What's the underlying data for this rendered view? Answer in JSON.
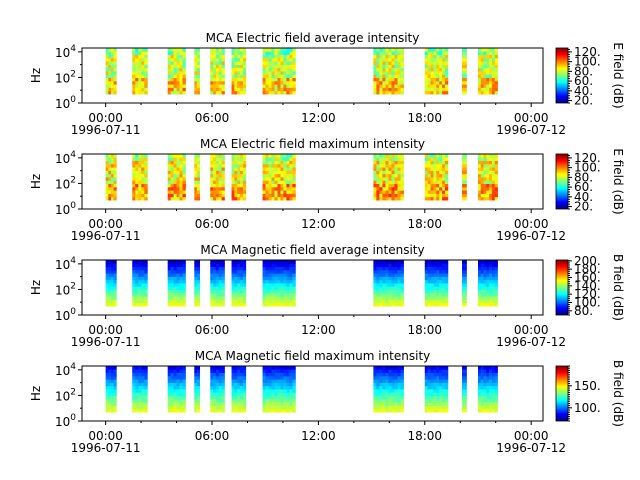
{
  "chart_data": [
    {
      "type": "heatmap",
      "title": "MCA  Electric field average intensity",
      "ylabel": "Hz",
      "ytick_labels": [
        "10^0",
        "10^2",
        "10^4"
      ],
      "yscale": "log",
      "ylim": [
        1,
        20000
      ],
      "xlim": [
        "1996-07-10 22:40",
        "1996-07-12 00:40"
      ],
      "xtick_labels": [
        "00:00",
        "06:00",
        "12:00",
        "18:00",
        "00:00"
      ],
      "xtick_values_hours": [
        0,
        6,
        12,
        18,
        24
      ],
      "xtick_date_labels": [
        "1996-07-11",
        "1996-07-12"
      ],
      "colorbar": {
        "label": "E field (dB)",
        "ticks": [
          20,
          40,
          60,
          80,
          100,
          120
        ],
        "tick_labels": [
          "20.",
          "40.",
          "60.",
          "80.",
          "100.",
          "120."
        ],
        "range": [
          15,
          128
        ],
        "colormap": "jet"
      },
      "freq_range_hz": [
        5,
        20000
      ],
      "data_segments_hours": [
        [
          0.0,
          0.6
        ],
        [
          1.5,
          2.35
        ],
        [
          3.5,
          4.5
        ],
        [
          5.0,
          5.3
        ],
        [
          5.9,
          6.7
        ],
        [
          7.1,
          7.9
        ],
        [
          8.85,
          10.7
        ],
        [
          15.1,
          16.8
        ],
        [
          18.0,
          19.3
        ],
        [
          20.1,
          20.35
        ],
        [
          21.0,
          22.1
        ]
      ],
      "typical_level_db": 80,
      "level_variation_db": 30
    },
    {
      "type": "heatmap",
      "title": "MCA  Electric field maximum intensity",
      "ylabel": "Hz",
      "ytick_labels": [
        "10^0",
        "10^2",
        "10^4"
      ],
      "yscale": "log",
      "ylim": [
        1,
        20000
      ],
      "xlim": [
        "1996-07-10 22:40",
        "1996-07-12 00:40"
      ],
      "xtick_labels": [
        "00:00",
        "06:00",
        "12:00",
        "18:00",
        "00:00"
      ],
      "xtick_values_hours": [
        0,
        6,
        12,
        18,
        24
      ],
      "xtick_date_labels": [
        "1996-07-11",
        "1996-07-12"
      ],
      "colorbar": {
        "label": "E field (dB)",
        "ticks": [
          20,
          40,
          60,
          80,
          100,
          120
        ],
        "tick_labels": [
          "20.",
          "40.",
          "60.",
          "80.",
          "100.",
          "120."
        ],
        "range": [
          15,
          128
        ],
        "colormap": "jet"
      },
      "freq_range_hz": [
        5,
        20000
      ],
      "data_segments_hours": [
        [
          0.0,
          0.6
        ],
        [
          1.5,
          2.35
        ],
        [
          3.5,
          4.5
        ],
        [
          5.0,
          5.3
        ],
        [
          5.9,
          6.7
        ],
        [
          7.1,
          7.9
        ],
        [
          8.85,
          10.7
        ],
        [
          15.1,
          16.8
        ],
        [
          18.0,
          19.3
        ],
        [
          20.1,
          20.35
        ],
        [
          21.0,
          22.1
        ]
      ],
      "typical_level_db": 85,
      "level_variation_db": 30
    },
    {
      "type": "heatmap",
      "title": "MCA  Magnetic field average intensity",
      "ylabel": "Hz",
      "ytick_labels": [
        "10^0",
        "10^2",
        "10^4"
      ],
      "yscale": "log",
      "ylim": [
        1,
        20000
      ],
      "xlim": [
        "1996-07-10 22:40",
        "1996-07-12 00:40"
      ],
      "xtick_labels": [
        "00:00",
        "06:00",
        "12:00",
        "18:00",
        "00:00"
      ],
      "xtick_values_hours": [
        0,
        6,
        12,
        18,
        24
      ],
      "xtick_date_labels": [
        "1996-07-11",
        "1996-07-12"
      ],
      "colorbar": {
        "label": "B field (dB)",
        "ticks": [
          80,
          100,
          120,
          140,
          160,
          180,
          200
        ],
        "tick_labels": [
          "80.",
          "100.",
          "120.",
          "140.",
          "160.",
          "180.",
          "200."
        ],
        "range": [
          70,
          202
        ],
        "colormap": "jet"
      },
      "freq_range_hz": [
        5,
        20000
      ],
      "data_segments_hours": [
        [
          0.0,
          0.6
        ],
        [
          1.5,
          2.35
        ],
        [
          3.5,
          4.5
        ],
        [
          5.0,
          5.3
        ],
        [
          5.9,
          6.7
        ],
        [
          7.1,
          7.9
        ],
        [
          8.85,
          10.7
        ],
        [
          15.1,
          16.8
        ],
        [
          18.0,
          19.3
        ],
        [
          20.1,
          20.35
        ],
        [
          21.0,
          22.1
        ]
      ],
      "level_low_freq_db": 150,
      "level_high_freq_db": 80
    },
    {
      "type": "heatmap",
      "title": "MCA  Magnetic field maximum intensity",
      "ylabel": "Hz",
      "ytick_labels": [
        "10^0",
        "10^2",
        "10^4"
      ],
      "yscale": "log",
      "ylim": [
        1,
        20000
      ],
      "xlim": [
        "1996-07-10 22:40",
        "1996-07-12 00:40"
      ],
      "xtick_labels": [
        "00:00",
        "06:00",
        "12:00",
        "18:00",
        "00:00"
      ],
      "xtick_values_hours": [
        0,
        6,
        12,
        18,
        24
      ],
      "xtick_date_labels": [
        "1996-07-11",
        "1996-07-12"
      ],
      "colorbar": {
        "label": "B field (dB)",
        "ticks": [
          100,
          150
        ],
        "tick_labels": [
          "100.",
          "150."
        ],
        "range": [
          70,
          195
        ],
        "colormap": "jet"
      },
      "freq_range_hz": [
        5,
        20000
      ],
      "data_segments_hours": [
        [
          0.0,
          0.6
        ],
        [
          1.5,
          2.35
        ],
        [
          3.5,
          4.5
        ],
        [
          5.0,
          5.3
        ],
        [
          5.9,
          6.7
        ],
        [
          7.1,
          7.9
        ],
        [
          8.85,
          10.7
        ],
        [
          15.1,
          16.8
        ],
        [
          18.0,
          19.3
        ],
        [
          20.1,
          20.35
        ],
        [
          21.0,
          22.1
        ]
      ],
      "level_low_freq_db": 145,
      "level_high_freq_db": 85
    }
  ]
}
